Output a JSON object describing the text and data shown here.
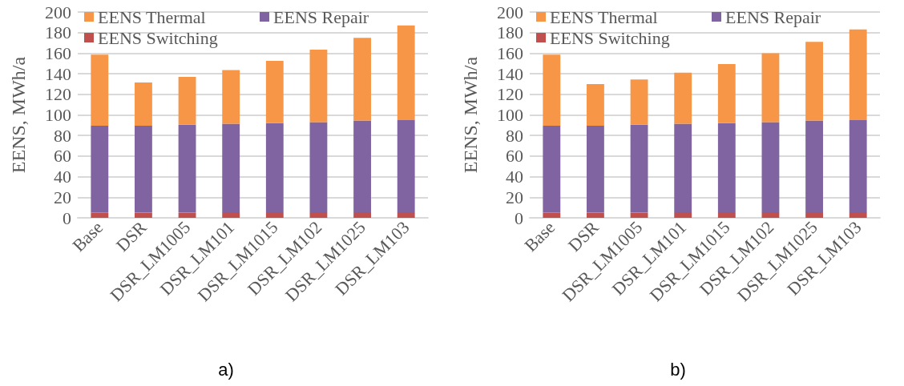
{
  "chart_data": [
    {
      "type": "bar",
      "stacked": true,
      "ylabel": "EENS, MWh/a",
      "categories": [
        "Base",
        "DSR",
        "DSR_LM1005",
        "DSR_LM101",
        "DSR_LM1015",
        "DSR_LM102",
        "DSR_LM1025",
        "DSR_LM103"
      ],
      "series": [
        {
          "name": "EENS Switching",
          "color": "#c0504d",
          "values": [
            5,
            5,
            5,
            5.5,
            5.5,
            5.5,
            5.5,
            5.5
          ]
        },
        {
          "name": "EENS Repair",
          "color": "#8064a2",
          "values": [
            84.5,
            84.5,
            85.5,
            86,
            86.5,
            87.5,
            89,
            89.5
          ]
        },
        {
          "name": "EENS Thermal",
          "color": "#f79646",
          "values": [
            69,
            42,
            46.5,
            52,
            60.5,
            70.5,
            80.5,
            92
          ]
        }
      ],
      "ylim": [
        0,
        200
      ],
      "yticks": [
        0,
        20,
        40,
        60,
        80,
        100,
        120,
        140,
        160,
        180,
        200
      ],
      "grid": "y",
      "legend": "top left",
      "annotations": [
        "a)"
      ]
    },
    {
      "type": "bar",
      "stacked": true,
      "ylabel": "EENS, MWh/a",
      "categories": [
        "Base",
        "DSR",
        "DSR_LM1005",
        "DSR_LM101",
        "DSR_LM1015",
        "DSR_LM102",
        "DSR_LM1025",
        "DSR_LM103"
      ],
      "series": [
        {
          "name": "EENS Switching",
          "color": "#c0504d",
          "values": [
            5,
            5,
            5,
            5.5,
            5.5,
            5.5,
            5.5,
            5.5
          ]
        },
        {
          "name": "EENS Repair",
          "color": "#8064a2",
          "values": [
            84.5,
            84.5,
            85.5,
            86,
            86.5,
            87.5,
            89,
            89.5
          ]
        },
        {
          "name": "EENS Thermal",
          "color": "#f79646",
          "values": [
            69,
            40.5,
            44,
            49.5,
            57.5,
            67,
            76.5,
            88
          ]
        }
      ],
      "ylim": [
        0,
        200
      ],
      "yticks": [
        0,
        20,
        40,
        60,
        80,
        100,
        120,
        140,
        160,
        180,
        200
      ],
      "grid": "y",
      "legend": "top left",
      "annotations": [
        "b)"
      ]
    }
  ]
}
